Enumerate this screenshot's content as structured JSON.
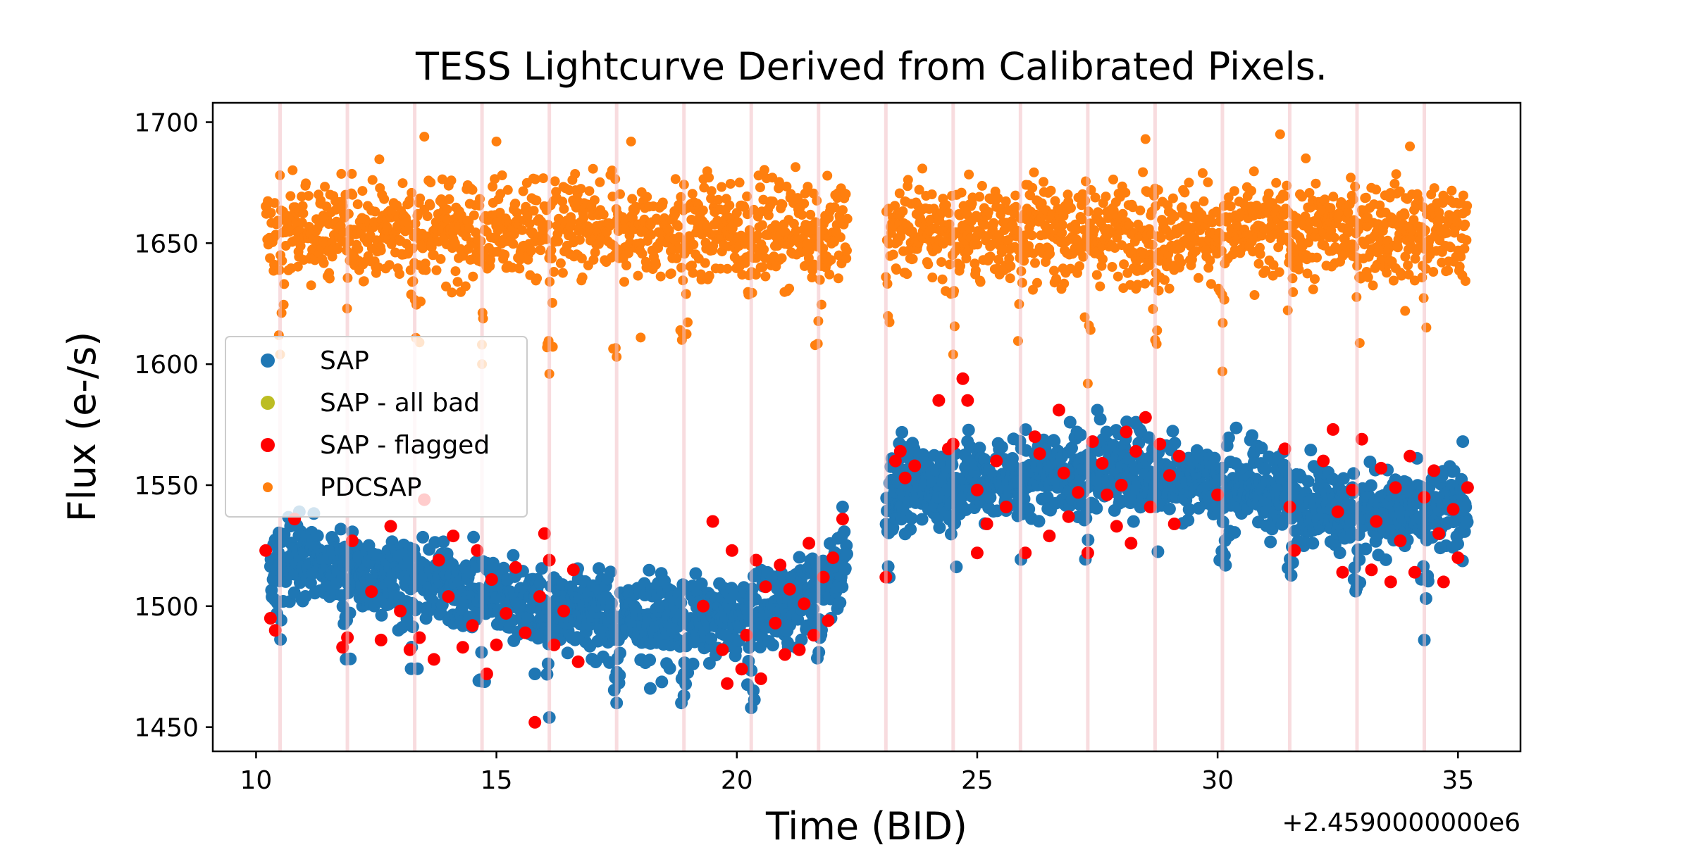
{
  "chart_data": {
    "type": "scatter",
    "title": "TESS Lightcurve Derived from Calibrated Pixels.",
    "xlabel": "Time (BID)",
    "ylabel": "Flux (e-/s)",
    "x_offset_label": "+2.4590000000e6",
    "xlim": [
      9.1,
      36.3
    ],
    "ylim": [
      1440,
      1708
    ],
    "x_ticks": [
      10,
      15,
      20,
      25,
      30,
      35
    ],
    "y_ticks": [
      1450,
      1500,
      1550,
      1600,
      1650,
      1700
    ],
    "grid": false,
    "legend_position": "center-left",
    "data_gap": [
      22.3,
      23.1
    ],
    "momentum_dump_times": [
      10.5,
      11.9,
      13.3,
      14.7,
      16.1,
      17.5,
      18.9,
      20.3,
      21.7,
      23.1,
      24.5,
      25.9,
      27.3,
      28.7,
      30.1,
      31.5,
      32.9,
      34.3
    ],
    "dump_line_color": "#f2c0c4",
    "series": [
      {
        "name": "SAP",
        "color": "#1f77b4",
        "description_points": [
          [
            10.3,
            1518
          ],
          [
            11.0,
            1520
          ],
          [
            12.0,
            1515
          ],
          [
            13.0,
            1512
          ],
          [
            14.0,
            1508
          ],
          [
            15.0,
            1505
          ],
          [
            16.0,
            1500
          ],
          [
            17.0,
            1497
          ],
          [
            18.0,
            1494
          ],
          [
            19.0,
            1494
          ],
          [
            20.0,
            1495
          ],
          [
            21.0,
            1500
          ],
          [
            22.0,
            1512
          ],
          [
            22.3,
            1520
          ],
          [
            23.1,
            1548
          ],
          [
            24.0,
            1550
          ],
          [
            25.0,
            1552
          ],
          [
            26.0,
            1554
          ],
          [
            27.0,
            1556
          ],
          [
            28.0,
            1557
          ],
          [
            29.0,
            1555
          ],
          [
            30.0,
            1552
          ],
          [
            31.0,
            1548
          ],
          [
            32.0,
            1544
          ],
          [
            33.0,
            1540
          ],
          [
            34.0,
            1538
          ],
          [
            35.2,
            1540
          ]
        ],
        "scatter_half_width": 12,
        "outliers": [
          [
            10.9,
            1539
          ],
          [
            15.8,
            1472
          ],
          [
            16.1,
            1454
          ],
          [
            17.5,
            1460
          ],
          [
            18.2,
            1466
          ],
          [
            18.9,
            1463
          ],
          [
            20.3,
            1458
          ],
          [
            34.3,
            1486
          ],
          [
            35.1,
            1568
          ],
          [
            22.2,
            1541
          ],
          [
            27.5,
            1581
          ],
          [
            28.3,
            1576
          ]
        ]
      },
      {
        "name": "SAP - all bad",
        "color": "#bcbd22",
        "points": []
      },
      {
        "name": "SAP - flagged",
        "color": "#ff0000",
        "points": [
          [
            10.2,
            1523
          ],
          [
            10.3,
            1495
          ],
          [
            10.4,
            1490
          ],
          [
            11.8,
            1483
          ],
          [
            11.9,
            1487
          ],
          [
            12.0,
            1527
          ],
          [
            12.4,
            1506
          ],
          [
            12.6,
            1486
          ],
          [
            12.8,
            1533
          ],
          [
            13.0,
            1498
          ],
          [
            13.2,
            1482
          ],
          [
            13.4,
            1487
          ],
          [
            13.5,
            1544
          ],
          [
            13.7,
            1478
          ],
          [
            13.8,
            1519
          ],
          [
            14.0,
            1504
          ],
          [
            14.1,
            1529
          ],
          [
            14.3,
            1483
          ],
          [
            14.5,
            1492
          ],
          [
            14.6,
            1523
          ],
          [
            14.8,
            1472
          ],
          [
            14.9,
            1511
          ],
          [
            15.0,
            1484
          ],
          [
            15.2,
            1497
          ],
          [
            15.4,
            1516
          ],
          [
            15.6,
            1489
          ],
          [
            15.8,
            1452
          ],
          [
            15.9,
            1504
          ],
          [
            16.0,
            1530
          ],
          [
            16.2,
            1484
          ],
          [
            16.4,
            1498
          ],
          [
            16.6,
            1515
          ],
          [
            16.7,
            1477
          ],
          [
            16.1,
            1519
          ],
          [
            19.3,
            1500
          ],
          [
            19.5,
            1535
          ],
          [
            19.7,
            1482
          ],
          [
            19.8,
            1468
          ],
          [
            19.9,
            1523
          ],
          [
            20.1,
            1474
          ],
          [
            20.2,
            1488
          ],
          [
            20.4,
            1519
          ],
          [
            20.5,
            1470
          ],
          [
            20.6,
            1508
          ],
          [
            20.8,
            1493
          ],
          [
            20.9,
            1517
          ],
          [
            21.0,
            1480
          ],
          [
            21.1,
            1507
          ],
          [
            21.3,
            1482
          ],
          [
            21.4,
            1501
          ],
          [
            21.5,
            1526
          ],
          [
            21.6,
            1488
          ],
          [
            21.8,
            1512
          ],
          [
            21.9,
            1494
          ],
          [
            22.0,
            1520
          ],
          [
            22.2,
            1536
          ],
          [
            10.8,
            1536
          ],
          [
            23.1,
            1512
          ],
          [
            23.3,
            1560
          ],
          [
            23.4,
            1564
          ],
          [
            23.5,
            1553
          ],
          [
            23.7,
            1558
          ],
          [
            24.2,
            1585
          ],
          [
            24.4,
            1565
          ],
          [
            24.5,
            1567
          ],
          [
            24.7,
            1594
          ],
          [
            24.8,
            1585
          ],
          [
            25.0,
            1522
          ],
          [
            25.0,
            1548
          ],
          [
            25.2,
            1534
          ],
          [
            25.4,
            1560
          ],
          [
            25.6,
            1541
          ],
          [
            26.0,
            1522
          ],
          [
            26.2,
            1570
          ],
          [
            26.3,
            1563
          ],
          [
            26.5,
            1529
          ],
          [
            26.7,
            1581
          ],
          [
            26.8,
            1555
          ],
          [
            26.9,
            1537
          ],
          [
            27.1,
            1547
          ],
          [
            27.3,
            1522
          ],
          [
            27.4,
            1568
          ],
          [
            27.6,
            1559
          ],
          [
            27.7,
            1546
          ],
          [
            27.9,
            1533
          ],
          [
            28.0,
            1550
          ],
          [
            28.1,
            1572
          ],
          [
            28.2,
            1526
          ],
          [
            28.3,
            1564
          ],
          [
            28.5,
            1578
          ],
          [
            28.6,
            1541
          ],
          [
            28.8,
            1567
          ],
          [
            29.0,
            1554
          ],
          [
            29.1,
            1534
          ],
          [
            29.2,
            1562
          ],
          [
            30.0,
            1546
          ],
          [
            31.4,
            1565
          ],
          [
            31.5,
            1541
          ],
          [
            31.6,
            1523
          ],
          [
            32.2,
            1560
          ],
          [
            32.4,
            1573
          ],
          [
            32.5,
            1539
          ],
          [
            32.6,
            1514
          ],
          [
            32.8,
            1548
          ],
          [
            33.0,
            1569
          ],
          [
            33.2,
            1515
          ],
          [
            33.3,
            1535
          ],
          [
            33.4,
            1557
          ],
          [
            33.6,
            1510
          ],
          [
            33.7,
            1549
          ],
          [
            33.8,
            1527
          ],
          [
            34.0,
            1562
          ],
          [
            34.1,
            1514
          ],
          [
            34.3,
            1545
          ],
          [
            34.5,
            1556
          ],
          [
            34.6,
            1530
          ],
          [
            34.7,
            1510
          ],
          [
            34.9,
            1540
          ],
          [
            35.0,
            1520
          ],
          [
            35.2,
            1549
          ]
        ]
      },
      {
        "name": "PDCSAP",
        "color": "#ff7f0e",
        "center": 1655,
        "scatter_half_width": 14,
        "segments": [
          [
            10.2,
            22.3
          ],
          [
            23.1,
            35.2
          ]
        ],
        "dip_low": 1605,
        "outliers": [
          [
            10.5,
            1604
          ],
          [
            13.4,
            1609
          ],
          [
            14.7,
            1600
          ],
          [
            16.1,
            1596
          ],
          [
            17.5,
            1603
          ],
          [
            18.0,
            1611
          ],
          [
            24.5,
            1604
          ],
          [
            27.3,
            1592
          ],
          [
            28.7,
            1610
          ],
          [
            30.1,
            1597
          ],
          [
            13.5,
            1694
          ],
          [
            15.0,
            1692
          ],
          [
            17.8,
            1692
          ],
          [
            28.5,
            1693
          ],
          [
            31.3,
            1695
          ],
          [
            34.0,
            1690
          ],
          [
            12.0,
            1645
          ],
          [
            33.9,
            1622
          ]
        ]
      }
    ]
  }
}
